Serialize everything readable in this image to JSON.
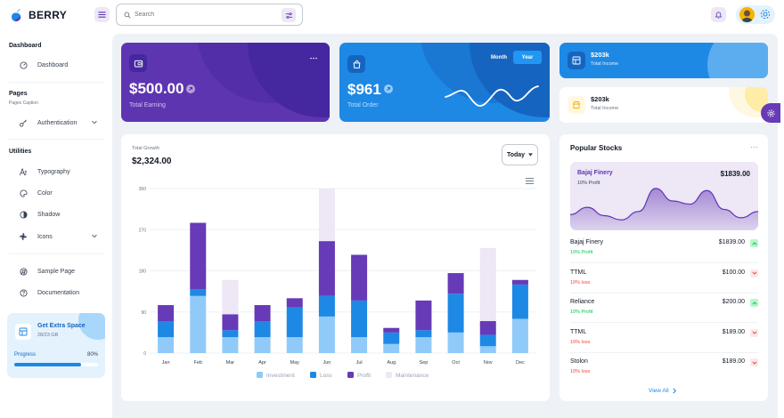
{
  "app": {
    "logo_text": "BERRY"
  },
  "header": {
    "search_placeholder": "Search"
  },
  "sidebar": {
    "dashboard_heading": "Dashboard",
    "dashboard_item": "Dashboard",
    "pages_heading": "Pages",
    "pages_caption": "Pages Caption",
    "authentication_item": "Authentication",
    "utilities_heading": "Utilities",
    "typography_item": "Typography",
    "color_item": "Color",
    "shadow_item": "Shadow",
    "icons_item": "Icons",
    "sample_page_item": "Sample Page",
    "documentation_item": "Documentation",
    "extra_card": {
      "title": "Get Extra Space",
      "subtitle": "28/23 GB",
      "progress_label": "Progress",
      "progress_value": "80%",
      "progress_fraction": 0.8
    }
  },
  "cards": {
    "earning": {
      "value": "$500.00",
      "label": "Total Earning"
    },
    "order": {
      "value": "$961",
      "label": "Total Order",
      "toggle_month": "Month",
      "toggle_year": "Year"
    },
    "income_dark": {
      "value": "$203k",
      "label": "Total Income"
    },
    "income_light": {
      "value": "$203k",
      "label": "Total Income"
    }
  },
  "growth": {
    "label": "Total Growth",
    "value": "$2,324.00",
    "period": "Today"
  },
  "chart_data": {
    "type": "bar",
    "stacked": true,
    "categories": [
      "Jan",
      "Feb",
      "Mar",
      "Apr",
      "May",
      "Jun",
      "Jul",
      "Aug",
      "Sep",
      "Oct",
      "Nov",
      "Dec"
    ],
    "y_ticks": [
      "0",
      "90",
      "180",
      "270",
      "360"
    ],
    "ylim": [
      0,
      360
    ],
    "series": [
      {
        "name": "Investment",
        "color": "#90caf9",
        "values": [
          35,
          125,
          35,
          35,
          35,
          80,
          35,
          20,
          35,
          45,
          15,
          75
        ]
      },
      {
        "name": "Loss",
        "color": "#1e88e5",
        "values": [
          35,
          15,
          15,
          35,
          65,
          45,
          80,
          25,
          15,
          85,
          25,
          75
        ]
      },
      {
        "name": "Profit",
        "color": "#673ab7",
        "values": [
          35,
          145,
          35,
          35,
          20,
          120,
          100,
          10,
          65,
          45,
          30,
          10
        ]
      },
      {
        "name": "Maintenance",
        "color": "#ede7f6",
        "values": [
          0,
          0,
          75,
          0,
          0,
          115,
          0,
          0,
          0,
          0,
          160,
          0
        ]
      }
    ]
  },
  "stocks": {
    "title": "Popular Stocks",
    "hero": {
      "name": "Bajaj Finery",
      "value": "$1839.00",
      "sub": "10% Profit",
      "trend": [
        15,
        22,
        14,
        10,
        18,
        40,
        28,
        25,
        38,
        20,
        12,
        18
      ]
    },
    "rows": [
      {
        "name": "Bajaj Finery",
        "value": "$1839.00",
        "sub": "10% Profit",
        "dir": "up"
      },
      {
        "name": "TTML",
        "value": "$100.00",
        "sub": "10% loss",
        "dir": "down"
      },
      {
        "name": "Reliance",
        "value": "$200.00",
        "sub": "10% Profit",
        "dir": "up"
      },
      {
        "name": "TTML",
        "value": "$189.00",
        "sub": "10% loss",
        "dir": "down"
      },
      {
        "name": "Stolon",
        "value": "$189.00",
        "sub": "10% loss",
        "dir": "down"
      }
    ],
    "view_all": "View All"
  },
  "colors": {
    "purple": "#5e35b1",
    "blue": "#1e88e5",
    "green": "#00c853",
    "red": "#f44336",
    "bg": "#eef2f6"
  }
}
